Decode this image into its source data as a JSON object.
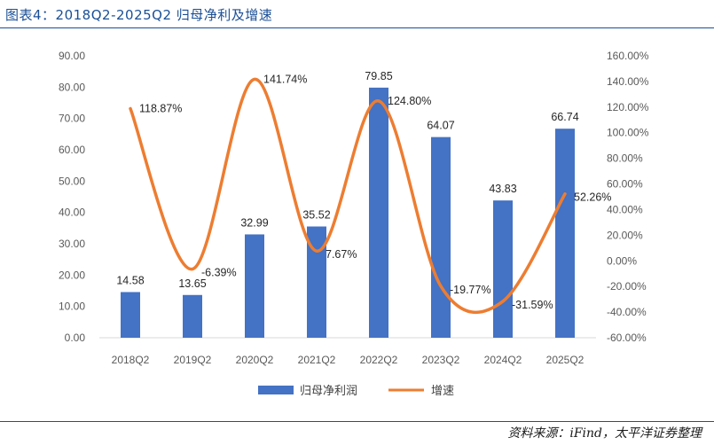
{
  "header": {
    "title": "图表4：2018Q2-2025Q2 归母净利及增速"
  },
  "footer": {
    "source": "资料来源：iFind，太平洋证券整理"
  },
  "chart_data": {
    "type": "bar",
    "categories": [
      "2018Q2",
      "2019Q2",
      "2020Q2",
      "2021Q2",
      "2022Q2",
      "2023Q2",
      "2024Q2",
      "2025Q2"
    ],
    "series": [
      {
        "name": "归母净利润",
        "type": "bar",
        "axis": "left",
        "values": [
          14.58,
          13.65,
          32.99,
          35.52,
          79.85,
          64.07,
          43.83,
          66.74
        ],
        "labels": [
          "14.58",
          "13.65",
          "32.99",
          "35.52",
          "79.85",
          "64.07",
          "43.83",
          "66.74"
        ]
      },
      {
        "name": "增速",
        "type": "line",
        "axis": "right",
        "smooth": true,
        "values": [
          118.87,
          -6.39,
          141.74,
          7.67,
          124.8,
          -19.77,
          -31.59,
          52.26
        ],
        "labels": [
          "118.87%",
          "-6.39%",
          "141.74%",
          "7.67%",
          "124.80%",
          "-19.77%",
          "-31.59%",
          "52.26%"
        ]
      }
    ],
    "y_left": {
      "ylim": [
        0,
        90
      ],
      "ticks": [
        "0.00",
        "10.00",
        "20.00",
        "30.00",
        "40.00",
        "50.00",
        "60.00",
        "70.00",
        "80.00",
        "90.00"
      ]
    },
    "y_right": {
      "ylim": [
        -60,
        160
      ],
      "ticks": [
        "-60.00%",
        "-40.00%",
        "-20.00%",
        "0.00%",
        "20.00%",
        "40.00%",
        "60.00%",
        "80.00%",
        "100.00%",
        "120.00%",
        "140.00%",
        "160.00%"
      ]
    },
    "grid": false,
    "legend": "bottom",
    "colors": {
      "bar": "#4472c4",
      "line": "#ed7d31"
    }
  }
}
